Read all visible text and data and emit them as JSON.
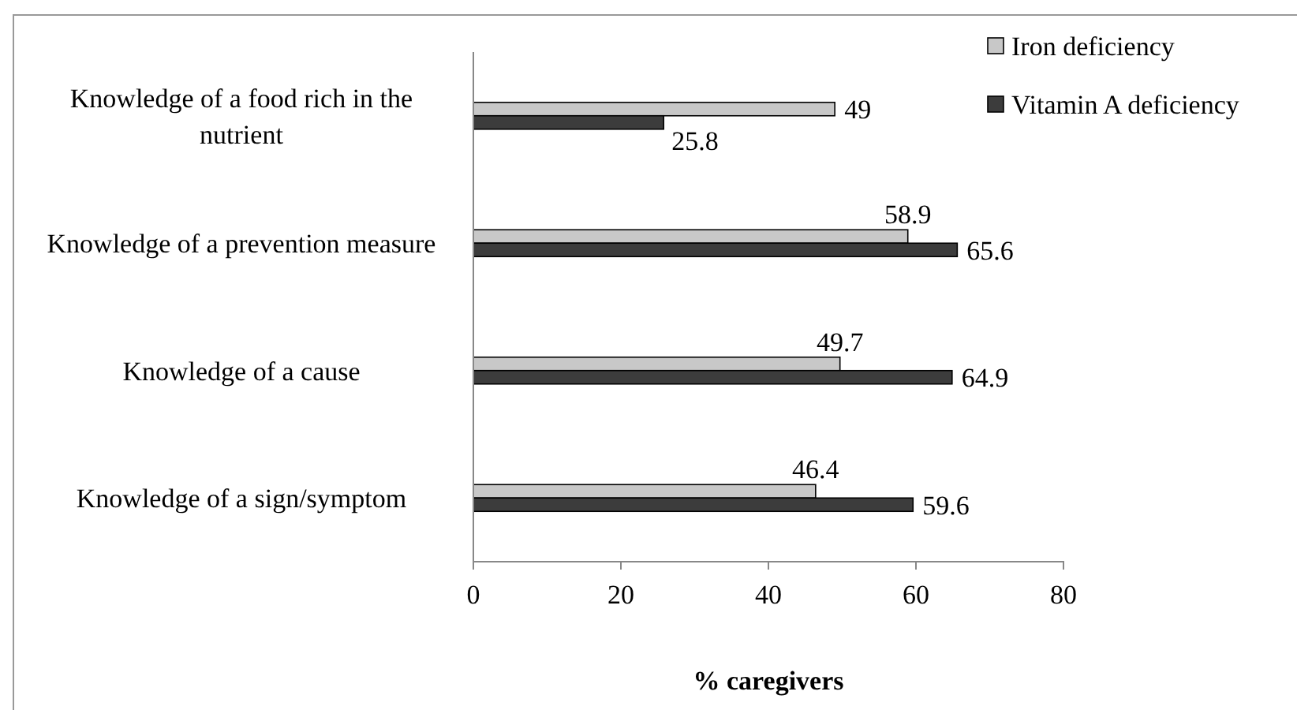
{
  "chart_data": {
    "type": "bar",
    "orientation": "horizontal",
    "categories": [
      "Knowledge of a food rich in the nutrient",
      "Knowledge of a prevention measure",
      "Knowledge of a cause",
      "Knowledge of a sign/symptom"
    ],
    "series": [
      {
        "name": "Iron deficiency",
        "color": "#c8c8c8",
        "values": [
          49,
          58.9,
          49.7,
          46.4
        ]
      },
      {
        "name": "Vitamin A deficiency",
        "color": "#3c3c3c",
        "values": [
          25.8,
          65.6,
          64.9,
          59.6
        ]
      }
    ],
    "xlim": [
      0,
      80
    ],
    "xticks": [
      0,
      20,
      40,
      60,
      80
    ],
    "xlabel": "% caregivers",
    "data_labels": true,
    "legend": "top right",
    "grid": false
  }
}
